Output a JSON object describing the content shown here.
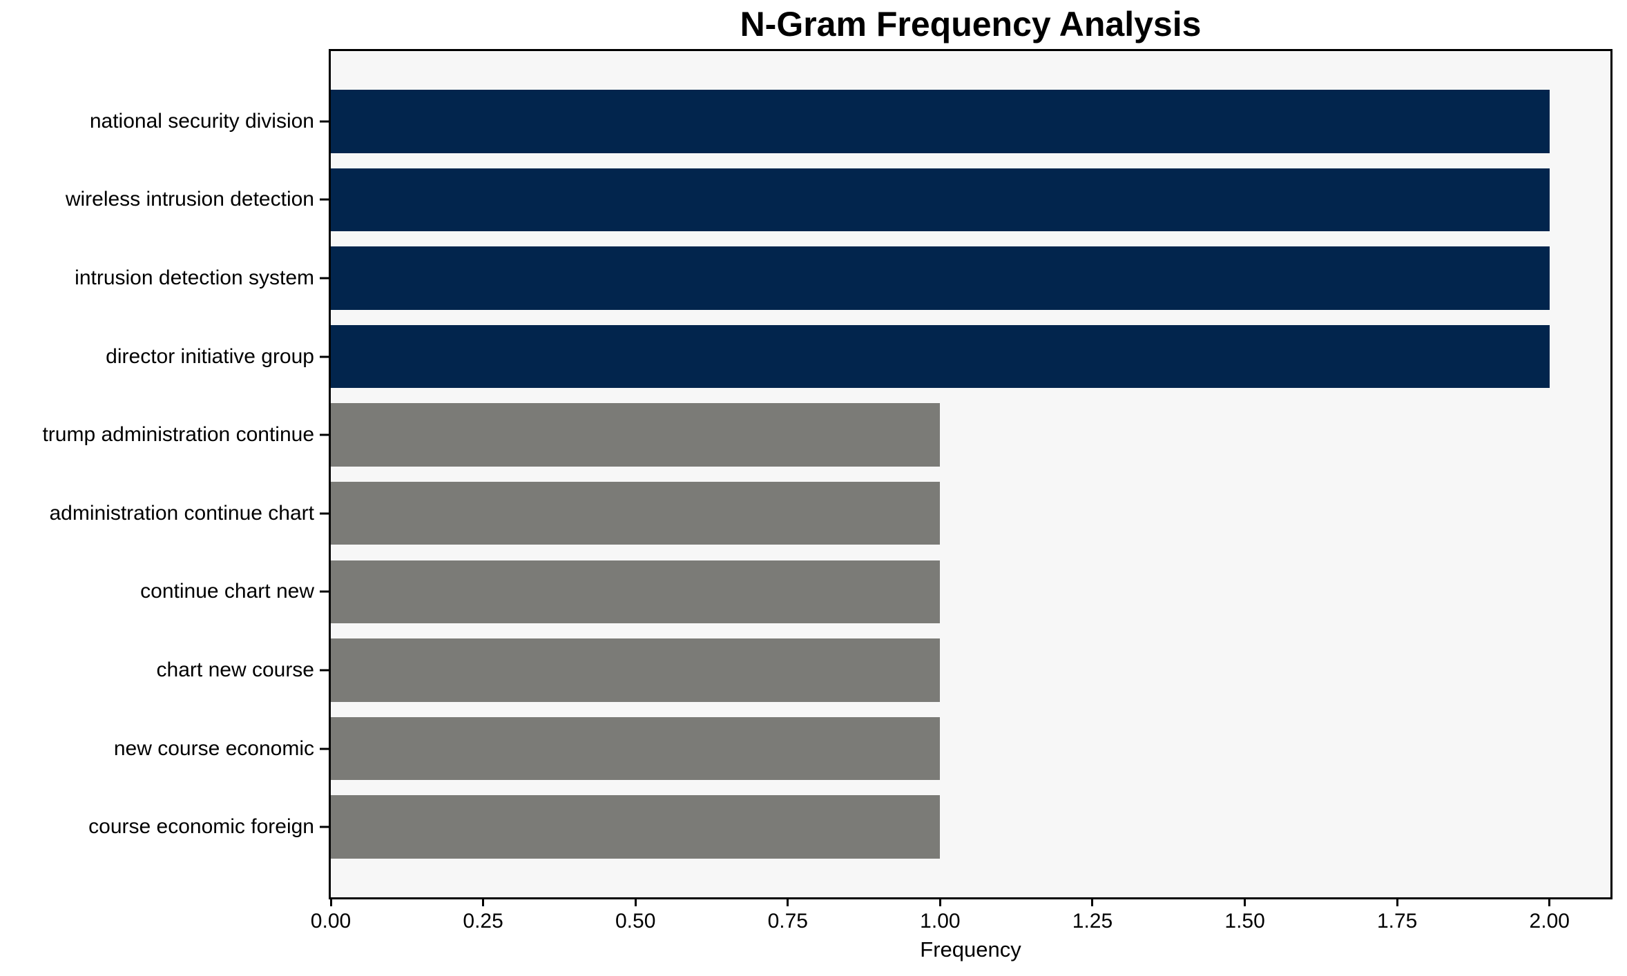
{
  "chart_data": {
    "type": "bar",
    "orientation": "horizontal",
    "title": "N-Gram Frequency Analysis",
    "xlabel": "Frequency",
    "ylabel": "",
    "categories": [
      "national security division",
      "wireless intrusion detection",
      "intrusion detection system",
      "director initiative group",
      "trump administration continue",
      "administration continue chart",
      "continue chart new",
      "chart new course",
      "new course economic",
      "course economic foreign"
    ],
    "values": [
      2,
      2,
      2,
      2,
      1,
      1,
      1,
      1,
      1,
      1
    ],
    "bar_colors": [
      "#02254d",
      "#02254d",
      "#02254d",
      "#02254d",
      "#7b7b77",
      "#7b7b77",
      "#7b7b77",
      "#7b7b77",
      "#7b7b77",
      "#7b7b77"
    ],
    "xlim": [
      0,
      2.1
    ],
    "xticks": [
      0.0,
      0.25,
      0.5,
      0.75,
      1.0,
      1.25,
      1.5,
      1.75,
      2.0
    ],
    "xtick_labels": [
      "0.00",
      "0.25",
      "0.50",
      "0.75",
      "1.00",
      "1.25",
      "1.50",
      "1.75",
      "2.00"
    ],
    "grid": false,
    "legend": "none",
    "plot_background": "#f7f7f7",
    "figure_background": "#ffffff",
    "spine_color": "#000000"
  }
}
